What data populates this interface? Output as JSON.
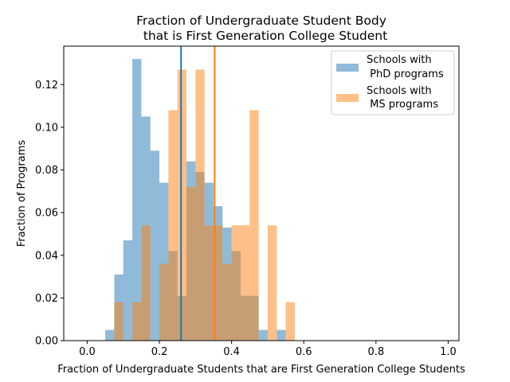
{
  "chart_data": {
    "type": "histogram",
    "title_lines": [
      "Fraction of Undergraduate Student Body",
      "that is First Generation College Student"
    ],
    "xlabel": "Fraction of Undergraduate Students that are First Generation College Students",
    "ylabel": "Fraction of Programs",
    "xlim": [
      -0.065,
      1.03
    ],
    "ylim": [
      0,
      0.138
    ],
    "xticks": [
      0.0,
      0.2,
      0.4,
      0.6,
      0.8,
      1.0
    ],
    "xtick_labels": [
      "0.0",
      "0.2",
      "0.4",
      "0.6",
      "0.8",
      "1.0"
    ],
    "yticks": [
      0.0,
      0.02,
      0.04,
      0.06,
      0.08,
      0.1,
      0.12
    ],
    "ytick_labels": [
      "0.00",
      "0.02",
      "0.04",
      "0.06",
      "0.08",
      "0.10",
      "0.12"
    ],
    "bin_width": 0.025,
    "series": [
      {
        "name": "Schools with\n PhD programs",
        "legend_lines": [
          "Schools with",
          " PhD programs"
        ],
        "color": "#1f77b4",
        "fill": "#8fbbd9",
        "bin_starts": [
          0.05,
          0.075,
          0.1,
          0.125,
          0.15,
          0.175,
          0.2,
          0.225,
          0.25,
          0.275,
          0.3,
          0.325,
          0.35,
          0.375,
          0.4,
          0.425,
          0.45,
          0.475,
          0.5,
          0.525
        ],
        "values": [
          0.005,
          0.031,
          0.047,
          0.132,
          0.105,
          0.089,
          0.074,
          0.042,
          0.021,
          0.084,
          0.079,
          0.074,
          0.063,
          0.053,
          0.042,
          0.021,
          0.021,
          0.005,
          0.0,
          0.005
        ],
        "mean_line": 0.26
      },
      {
        "name": "Schools with\n MS programs",
        "legend_lines": [
          "Schools with",
          " MS programs"
        ],
        "color": "#ff7f0e",
        "fill": "#ffbf86",
        "bin_starts": [
          0.075,
          0.1,
          0.125,
          0.15,
          0.175,
          0.2,
          0.225,
          0.25,
          0.275,
          0.3,
          0.325,
          0.35,
          0.375,
          0.4,
          0.425,
          0.45,
          0.475,
          0.5,
          0.525,
          0.55,
          0.575,
          0.6
        ],
        "values": [
          0.018,
          0.0,
          0.018,
          0.054,
          0.0,
          0.036,
          0.108,
          0.127,
          0.072,
          0.127,
          0.054,
          0.054,
          0.036,
          0.054,
          0.054,
          0.108,
          0.0,
          0.054,
          0.0,
          0.018,
          0.0,
          0.0
        ],
        "mean_line": 0.353
      }
    ],
    "legend_position": "top-right"
  }
}
